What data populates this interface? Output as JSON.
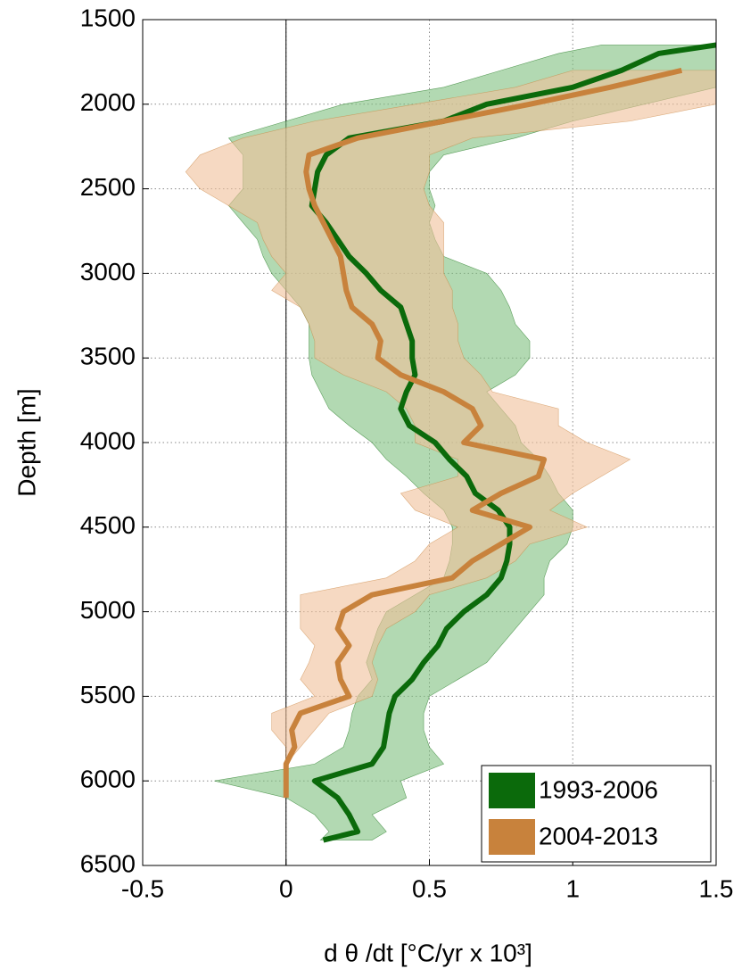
{
  "chart_data": {
    "type": "line",
    "xlabel": "d θ /dt [°C/yr x 10³]",
    "ylabel": "Depth [m]",
    "xlim": [
      -0.5,
      1.5
    ],
    "xticks": [
      -0.5,
      0,
      0.5,
      1,
      1.5
    ],
    "ylim": [
      1500,
      6500
    ],
    "yticks": [
      1500,
      2000,
      2500,
      3000,
      3500,
      4000,
      4500,
      5000,
      5500,
      6000,
      6500
    ],
    "y_inverted": true,
    "grid": true,
    "zero_line": true,
    "legend": "lower right",
    "depth": [
      1650,
      1700,
      1800,
      1900,
      2000,
      2100,
      2200,
      2300,
      2400,
      2500,
      2600,
      2700,
      2800,
      2900,
      3000,
      3100,
      3200,
      3300,
      3400,
      3500,
      3600,
      3700,
      3800,
      3900,
      4000,
      4100,
      4200,
      4300,
      4400,
      4500,
      4600,
      4700,
      4800,
      4900,
      5000,
      5100,
      5200,
      5300,
      5400,
      5500,
      5600,
      5700,
      5800,
      5900,
      6000,
      6100,
      6200,
      6300,
      6350
    ],
    "series": [
      {
        "name": "1993-2006",
        "color": "#0b6a0b",
        "band_color": "#7fbf7f",
        "values": [
          1.5,
          1.3,
          1.17,
          1.0,
          0.7,
          0.55,
          0.22,
          0.14,
          0.11,
          0.1,
          0.09,
          0.14,
          0.18,
          0.22,
          0.28,
          0.33,
          0.4,
          0.42,
          0.44,
          0.44,
          0.45,
          0.42,
          0.4,
          0.43,
          0.52,
          0.57,
          0.63,
          0.66,
          0.74,
          0.78,
          0.78,
          0.77,
          0.75,
          0.7,
          0.62,
          0.56,
          0.53,
          0.48,
          0.44,
          0.38,
          0.36,
          0.35,
          0.34,
          0.3,
          0.1,
          0.18,
          0.22,
          0.25,
          0.13
        ],
        "lower": [
          1.1,
          0.95,
          0.75,
          0.55,
          0.2,
          0.0,
          -0.2,
          -0.15,
          -0.15,
          -0.15,
          -0.2,
          -0.15,
          -0.1,
          -0.08,
          -0.05,
          0.0,
          0.05,
          0.08,
          0.08,
          0.08,
          0.09,
          0.12,
          0.15,
          0.22,
          0.3,
          0.35,
          0.42,
          0.48,
          0.55,
          0.58,
          0.58,
          0.57,
          0.55,
          0.45,
          0.35,
          0.32,
          0.3,
          0.28,
          0.3,
          0.25,
          0.23,
          0.22,
          0.2,
          0.1,
          -0.25,
          0.0,
          0.1,
          0.15,
          0.12
        ],
        "upper": [
          1.5,
          1.5,
          1.5,
          1.5,
          1.25,
          1.0,
          0.8,
          0.55,
          0.5,
          0.5,
          0.52,
          0.5,
          0.52,
          0.55,
          0.7,
          0.75,
          0.78,
          0.8,
          0.85,
          0.85,
          0.8,
          0.7,
          0.75,
          0.8,
          0.82,
          0.88,
          0.92,
          0.95,
          1.0,
          1.0,
          0.98,
          0.92,
          0.9,
          0.9,
          0.85,
          0.8,
          0.75,
          0.7,
          0.6,
          0.5,
          0.48,
          0.48,
          0.5,
          0.55,
          0.4,
          0.42,
          0.3,
          0.35,
          0.3
        ]
      },
      {
        "name": "2004-2013",
        "color": "#c8823c",
        "band_color": "#f0c09a",
        "values": [
          null,
          null,
          1.38,
          1.13,
          0.85,
          0.55,
          0.25,
          0.08,
          0.07,
          0.08,
          0.1,
          0.13,
          0.16,
          0.19,
          0.2,
          0.21,
          0.23,
          0.3,
          0.33,
          0.32,
          0.4,
          0.55,
          0.65,
          0.68,
          0.62,
          0.9,
          0.88,
          0.75,
          0.65,
          0.85,
          0.75,
          0.65,
          0.58,
          0.3,
          0.2,
          0.18,
          0.22,
          0.18,
          0.19,
          0.22,
          0.05,
          0.02,
          0.03,
          0.0,
          0.0,
          0.0,
          null,
          null,
          null
        ],
        "lower": [
          null,
          null,
          1.0,
          0.8,
          0.45,
          0.1,
          -0.15,
          -0.3,
          -0.35,
          -0.3,
          -0.2,
          -0.1,
          -0.08,
          -0.05,
          0.0,
          -0.05,
          0.05,
          0.08,
          0.1,
          0.1,
          0.2,
          0.35,
          0.42,
          0.45,
          0.45,
          0.6,
          0.6,
          0.4,
          0.45,
          0.6,
          0.5,
          0.45,
          0.35,
          0.05,
          0.05,
          0.05,
          0.1,
          0.08,
          0.05,
          0.1,
          -0.05,
          -0.05,
          0.0,
          0.0,
          0.0,
          0.0,
          null,
          null,
          null
        ],
        "upper": [
          null,
          null,
          1.5,
          1.5,
          1.5,
          1.2,
          0.65,
          0.5,
          0.5,
          0.48,
          0.5,
          0.55,
          0.55,
          0.55,
          0.55,
          0.58,
          0.58,
          0.6,
          0.6,
          0.62,
          0.68,
          0.72,
          0.95,
          0.95,
          1.05,
          1.2,
          1.1,
          1.0,
          0.92,
          1.05,
          0.85,
          0.8,
          0.7,
          0.5,
          0.45,
          0.35,
          0.32,
          0.3,
          0.32,
          0.3,
          0.15,
          0.1,
          0.05,
          0.0,
          0.0,
          0.0,
          null,
          null,
          null
        ]
      }
    ]
  }
}
